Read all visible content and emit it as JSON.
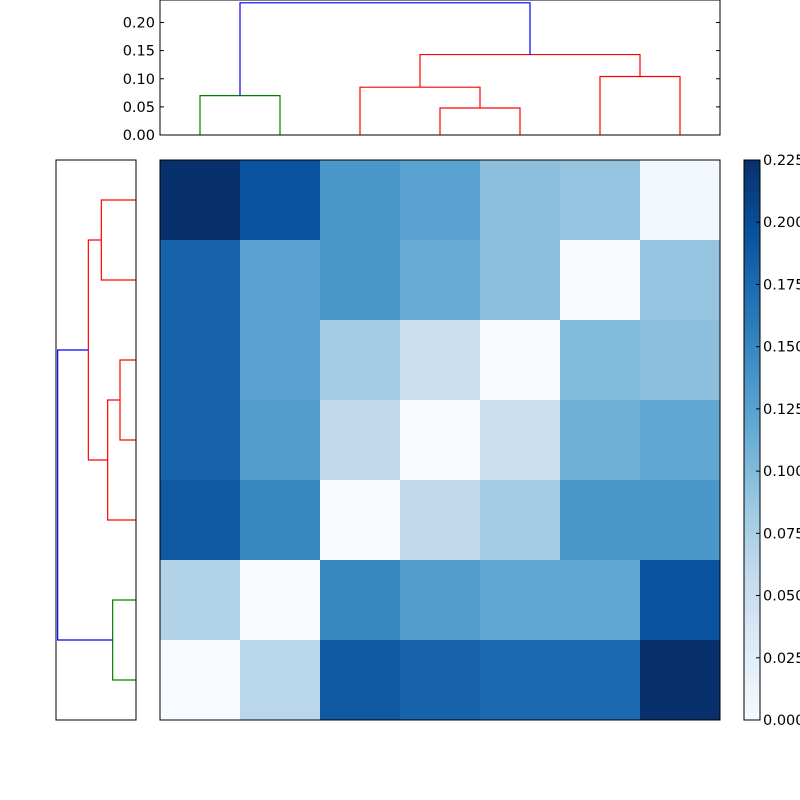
{
  "chart_data": {
    "type": "heatmap",
    "title": "",
    "matrix": [
      [
        0.225,
        0.195,
        0.135,
        0.125,
        0.095,
        0.09,
        0.005
      ],
      [
        0.18,
        0.125,
        0.135,
        0.115,
        0.095,
        0.0,
        0.09
      ],
      [
        0.18,
        0.125,
        0.08,
        0.05,
        0.0,
        0.1,
        0.095
      ],
      [
        0.18,
        0.13,
        0.06,
        0.0,
        0.05,
        0.11,
        0.12
      ],
      [
        0.19,
        0.15,
        0.0,
        0.06,
        0.08,
        0.135,
        0.135
      ],
      [
        0.07,
        0.0,
        0.15,
        0.13,
        0.12,
        0.12,
        0.195
      ],
      [
        0.0,
        0.065,
        0.19,
        0.18,
        0.175,
        0.175,
        0.225
      ]
    ],
    "colormap": "Blues",
    "value_range": [
      0.0,
      0.225
    ],
    "colorbar_ticks": [
      "0.000",
      "0.025",
      "0.050",
      "0.075",
      "0.100",
      "0.125",
      "0.150",
      "0.175",
      "0.200",
      "0.225"
    ],
    "colorbar_tick_values": [
      0.0,
      0.025,
      0.05,
      0.075,
      0.1,
      0.125,
      0.15,
      0.175,
      0.2,
      0.225
    ],
    "top_dendrogram": {
      "yaxis_ticks": [
        "0.00",
        "0.05",
        "0.10",
        "0.15",
        "0.20"
      ],
      "ylim": [
        0.0,
        0.24
      ],
      "links": [
        {
          "left": 0.5,
          "right": 1.5,
          "height": 0.07,
          "left_height": 0.0,
          "right_height": 0.0,
          "color": "#008000"
        },
        {
          "left": 3.5,
          "right": 4.5,
          "height": 0.048,
          "left_height": 0.0,
          "right_height": 0.0,
          "color": "#ff0000"
        },
        {
          "left": 2.5,
          "right": 4.0,
          "height": 0.085,
          "left_height": 0.0,
          "right_height": 0.048,
          "color": "#ff0000"
        },
        {
          "left": 5.5,
          "right": 6.5,
          "height": 0.104,
          "left_height": 0.0,
          "right_height": 0.0,
          "color": "#ff0000"
        },
        {
          "left": 3.25,
          "right": 6.0,
          "height": 0.143,
          "left_height": 0.085,
          "right_height": 0.104,
          "color": "#ff0000"
        },
        {
          "left": 1.0,
          "right": 4.625,
          "height": 0.235,
          "left_height": 0.07,
          "right_height": 0.143,
          "color": "#0000ff"
        }
      ]
    },
    "left_dendrogram": {
      "xlim": [
        0.0,
        0.24
      ],
      "links": [
        {
          "top": 5.5,
          "bottom": 6.5,
          "height": 0.07,
          "top_height": 0.0,
          "bottom_height": 0.0,
          "color": "#008000"
        },
        {
          "top": 2.5,
          "bottom": 3.5,
          "height": 0.048,
          "top_height": 0.0,
          "bottom_height": 0.0,
          "color": "#ff0000"
        },
        {
          "top": 3.0,
          "bottom": 4.5,
          "height": 0.085,
          "top_height": 0.048,
          "bottom_height": 0.0,
          "color": "#ff0000"
        },
        {
          "top": 0.5,
          "bottom": 1.5,
          "height": 0.104,
          "top_height": 0.0,
          "bottom_height": 0.0,
          "color": "#ff0000"
        },
        {
          "top": 1.0,
          "bottom": 3.75,
          "height": 0.143,
          "top_height": 0.104,
          "bottom_height": 0.085,
          "color": "#ff0000"
        },
        {
          "top": 2.375,
          "bottom": 6.0,
          "height": 0.235,
          "top_height": 0.143,
          "bottom_height": 0.07,
          "color": "#0000ff"
        }
      ]
    }
  }
}
